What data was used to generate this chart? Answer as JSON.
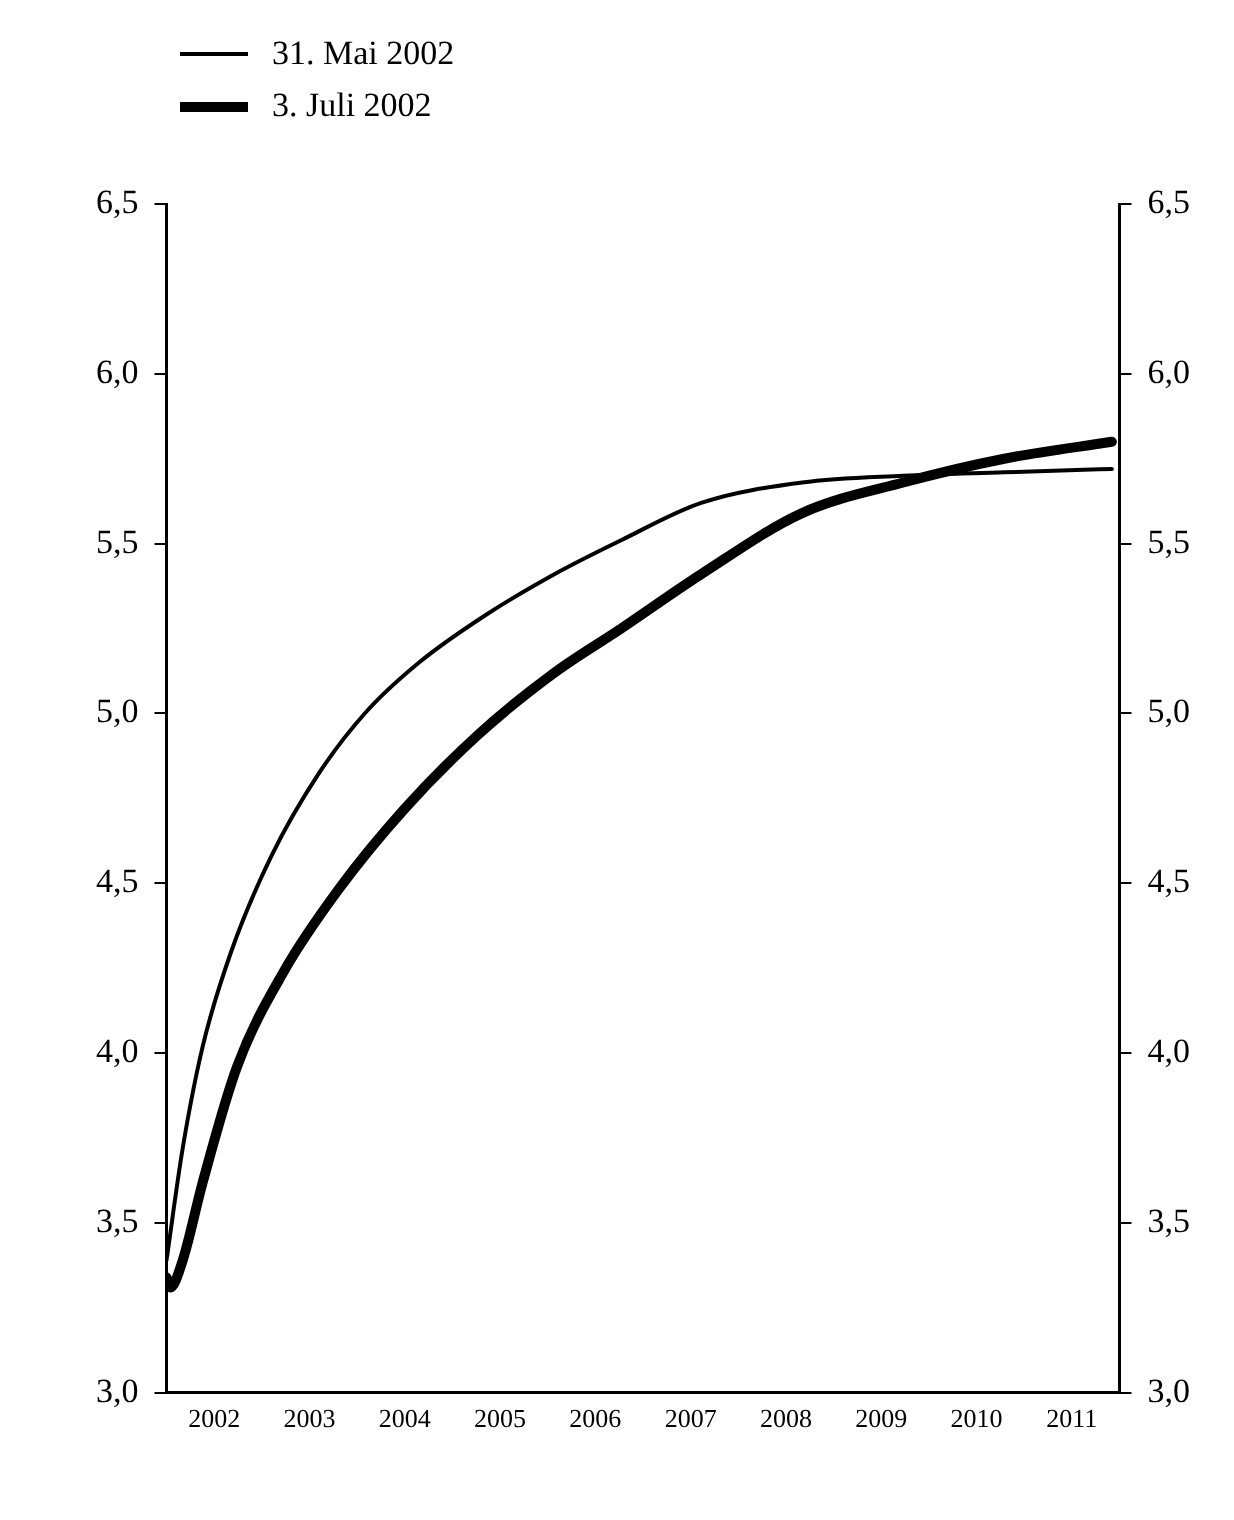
{
  "chart_data": {
    "type": "line",
    "legend": "top left",
    "grid": false,
    "marker": "none",
    "line_style": "solid",
    "xlim": [
      2002,
      2012
    ],
    "xticks": [
      {
        "value": 2002.5,
        "label": "2002"
      },
      {
        "value": 2003.5,
        "label": "2003"
      },
      {
        "value": 2004.5,
        "label": "2004"
      },
      {
        "value": 2005.5,
        "label": "2005"
      },
      {
        "value": 2006.5,
        "label": "2006"
      },
      {
        "value": 2007.5,
        "label": "2007"
      },
      {
        "value": 2008.5,
        "label": "2008"
      },
      {
        "value": 2009.5,
        "label": "2009"
      },
      {
        "value": 2010.5,
        "label": "2010"
      },
      {
        "value": 2011.5,
        "label": "2011"
      }
    ],
    "ylim": [
      3.0,
      6.5
    ],
    "yticks": [
      {
        "value": 3.0,
        "label": "3,0"
      },
      {
        "value": 3.5,
        "label": "3,5"
      },
      {
        "value": 4.0,
        "label": "4,0"
      },
      {
        "value": 4.5,
        "label": "4,5"
      },
      {
        "value": 5.0,
        "label": "5,0"
      },
      {
        "value": 5.5,
        "label": "5,5"
      },
      {
        "value": 6.0,
        "label": "6,0"
      },
      {
        "value": 6.5,
        "label": "6,5"
      }
    ],
    "y2lim": [
      3.0,
      6.5
    ],
    "y2ticks": [
      {
        "value": 3.0,
        "label": "3,0"
      },
      {
        "value": 3.5,
        "label": "3,5"
      },
      {
        "value": 4.0,
        "label": "4,0"
      },
      {
        "value": 4.5,
        "label": "4,5"
      },
      {
        "value": 5.0,
        "label": "5,0"
      },
      {
        "value": 5.5,
        "label": "5,5"
      },
      {
        "value": 6.0,
        "label": "6,0"
      },
      {
        "value": 6.5,
        "label": "6,5"
      }
    ],
    "series": [
      {
        "name": "31. Mai 2002",
        "color": "#000000",
        "x": [
          2002.0,
          2002.17,
          2002.38,
          2002.68,
          2003.1,
          2003.59,
          2004.08,
          2004.65,
          2005.35,
          2006.07,
          2006.77,
          2007.61,
          2008.67,
          2009.73,
          2010.79,
          2011.92
        ],
        "values": [
          3.39,
          3.72,
          4.02,
          4.3,
          4.58,
          4.82,
          5.0,
          5.15,
          5.29,
          5.41,
          5.51,
          5.62,
          5.68,
          5.7,
          5.71,
          5.72
        ]
      },
      {
        "name": "3. Juli 2002",
        "color": "#000000",
        "x": [
          2002.0,
          2002.04,
          2002.17,
          2002.38,
          2002.74,
          2003.23,
          2003.8,
          2004.5,
          2005.28,
          2006.07,
          2006.77,
          2007.61,
          2008.67,
          2009.73,
          2010.79,
          2011.92
        ],
        "values": [
          3.34,
          3.31,
          3.39,
          3.62,
          3.96,
          4.24,
          4.48,
          4.72,
          4.94,
          5.12,
          5.25,
          5.41,
          5.59,
          5.68,
          5.75,
          5.8
        ]
      }
    ]
  }
}
